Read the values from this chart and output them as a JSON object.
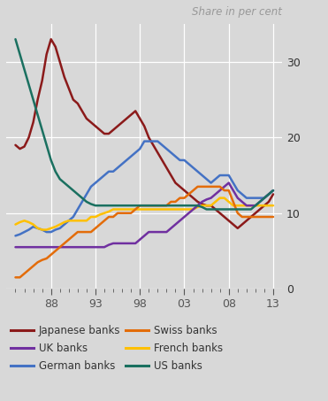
{
  "title": "Share in per cent",
  "background_color": "#d8d8d8",
  "xlim": [
    1983.0,
    2014.0
  ],
  "ylim": [
    0,
    35
  ],
  "yticks": [
    0,
    10,
    20,
    30
  ],
  "xticks": [
    1988,
    1993,
    1998,
    2003,
    2008,
    2013
  ],
  "xticklabels": [
    "88",
    "93",
    "98",
    "03",
    "08",
    "13"
  ],
  "series": {
    "Japanese banks": {
      "color": "#8b1a1a",
      "data": [
        [
          1984,
          19
        ],
        [
          1984.5,
          18.5
        ],
        [
          1985,
          18.8
        ],
        [
          1985.5,
          20
        ],
        [
          1986,
          22
        ],
        [
          1986.5,
          25
        ],
        [
          1987,
          27.5
        ],
        [
          1987.5,
          31
        ],
        [
          1988,
          33
        ],
        [
          1988.5,
          32
        ],
        [
          1989,
          30
        ],
        [
          1989.5,
          28
        ],
        [
          1990,
          26.5
        ],
        [
          1990.5,
          25
        ],
        [
          1991,
          24.5
        ],
        [
          1991.5,
          23.5
        ],
        [
          1992,
          22.5
        ],
        [
          1992.5,
          22
        ],
        [
          1993,
          21.5
        ],
        [
          1993.5,
          21
        ],
        [
          1994,
          20.5
        ],
        [
          1994.5,
          20.5
        ],
        [
          1995,
          21
        ],
        [
          1995.5,
          21.5
        ],
        [
          1996,
          22
        ],
        [
          1996.5,
          22.5
        ],
        [
          1997,
          23
        ],
        [
          1997.5,
          23.5
        ],
        [
          1998,
          22.5
        ],
        [
          1998.5,
          21.5
        ],
        [
          1999,
          20
        ],
        [
          1999.5,
          19
        ],
        [
          2000,
          18
        ],
        [
          2000.5,
          17
        ],
        [
          2001,
          16
        ],
        [
          2001.5,
          15
        ],
        [
          2002,
          14
        ],
        [
          2002.5,
          13.5
        ],
        [
          2003,
          13
        ],
        [
          2003.5,
          12.5
        ],
        [
          2004,
          12
        ],
        [
          2004.5,
          11.5
        ],
        [
          2005,
          11.2
        ],
        [
          2005.5,
          11
        ],
        [
          2006,
          11
        ],
        [
          2006.5,
          10.5
        ],
        [
          2007,
          10
        ],
        [
          2007.5,
          9.5
        ],
        [
          2008,
          9
        ],
        [
          2008.5,
          8.5
        ],
        [
          2009,
          8
        ],
        [
          2009.5,
          8.5
        ],
        [
          2010,
          9
        ],
        [
          2010.5,
          9.5
        ],
        [
          2011,
          10
        ],
        [
          2011.5,
          10.5
        ],
        [
          2012,
          11
        ],
        [
          2012.5,
          11.5
        ],
        [
          2013,
          12.5
        ]
      ]
    },
    "German banks": {
      "color": "#4472c4",
      "data": [
        [
          1984,
          7
        ],
        [
          1984.5,
          7.2
        ],
        [
          1985,
          7.5
        ],
        [
          1985.5,
          7.8
        ],
        [
          1986,
          8.2
        ],
        [
          1986.5,
          8
        ],
        [
          1987,
          7.8
        ],
        [
          1987.5,
          7.5
        ],
        [
          1988,
          7.5
        ],
        [
          1988.5,
          7.8
        ],
        [
          1989,
          8
        ],
        [
          1989.5,
          8.5
        ],
        [
          1990,
          9
        ],
        [
          1990.5,
          9.5
        ],
        [
          1991,
          10.5
        ],
        [
          1991.5,
          11.5
        ],
        [
          1992,
          12.5
        ],
        [
          1992.5,
          13.5
        ],
        [
          1993,
          14
        ],
        [
          1993.5,
          14.5
        ],
        [
          1994,
          15
        ],
        [
          1994.5,
          15.5
        ],
        [
          1995,
          15.5
        ],
        [
          1995.5,
          16
        ],
        [
          1996,
          16.5
        ],
        [
          1996.5,
          17
        ],
        [
          1997,
          17.5
        ],
        [
          1997.5,
          18
        ],
        [
          1998,
          18.5
        ],
        [
          1998.5,
          19.5
        ],
        [
          1999,
          19.5
        ],
        [
          1999.5,
          19.5
        ],
        [
          2000,
          19.5
        ],
        [
          2000.5,
          19
        ],
        [
          2001,
          18.5
        ],
        [
          2001.5,
          18
        ],
        [
          2002,
          17.5
        ],
        [
          2002.5,
          17
        ],
        [
          2003,
          17
        ],
        [
          2003.5,
          16.5
        ],
        [
          2004,
          16
        ],
        [
          2004.5,
          15.5
        ],
        [
          2005,
          15
        ],
        [
          2005.5,
          14.5
        ],
        [
          2006,
          14
        ],
        [
          2006.5,
          14.5
        ],
        [
          2007,
          15
        ],
        [
          2007.5,
          15
        ],
        [
          2008,
          15
        ],
        [
          2008.5,
          14
        ],
        [
          2009,
          13
        ],
        [
          2009.5,
          12.5
        ],
        [
          2010,
          12
        ],
        [
          2010.5,
          12
        ],
        [
          2011,
          12
        ],
        [
          2011.5,
          12
        ],
        [
          2012,
          12
        ],
        [
          2012.5,
          12.5
        ],
        [
          2013,
          13
        ]
      ]
    },
    "French banks": {
      "color": "#ffc000",
      "data": [
        [
          1984,
          8.5
        ],
        [
          1984.5,
          8.8
        ],
        [
          1985,
          9
        ],
        [
          1985.5,
          8.8
        ],
        [
          1986,
          8.5
        ],
        [
          1986.5,
          8
        ],
        [
          1987,
          7.8
        ],
        [
          1987.5,
          7.8
        ],
        [
          1988,
          8
        ],
        [
          1988.5,
          8.2
        ],
        [
          1989,
          8.5
        ],
        [
          1989.5,
          8.8
        ],
        [
          1990,
          9
        ],
        [
          1990.5,
          9
        ],
        [
          1991,
          9
        ],
        [
          1991.5,
          9
        ],
        [
          1992,
          9
        ],
        [
          1992.5,
          9.5
        ],
        [
          1993,
          9.5
        ],
        [
          1993.5,
          9.8
        ],
        [
          1994,
          10
        ],
        [
          1994.5,
          10.2
        ],
        [
          1995,
          10.5
        ],
        [
          1995.5,
          10.5
        ],
        [
          1996,
          10.5
        ],
        [
          1996.5,
          10.5
        ],
        [
          1997,
          10.5
        ],
        [
          1997.5,
          10.5
        ],
        [
          1998,
          10.5
        ],
        [
          1998.5,
          10.5
        ],
        [
          1999,
          10.5
        ],
        [
          1999.5,
          10.5
        ],
        [
          2000,
          10.5
        ],
        [
          2000.5,
          10.5
        ],
        [
          2001,
          10.5
        ],
        [
          2001.5,
          10.5
        ],
        [
          2002,
          10.5
        ],
        [
          2002.5,
          10.5
        ],
        [
          2003,
          10.5
        ],
        [
          2003.5,
          10.5
        ],
        [
          2004,
          10.5
        ],
        [
          2004.5,
          10.8
        ],
        [
          2005,
          11
        ],
        [
          2005.5,
          11
        ],
        [
          2006,
          11
        ],
        [
          2006.5,
          11.5
        ],
        [
          2007,
          12
        ],
        [
          2007.5,
          12
        ],
        [
          2008,
          11.5
        ],
        [
          2008.5,
          11
        ],
        [
          2009,
          11
        ],
        [
          2009.5,
          11
        ],
        [
          2010,
          11
        ],
        [
          2010.5,
          11
        ],
        [
          2011,
          11
        ],
        [
          2011.5,
          11
        ],
        [
          2012,
          11
        ],
        [
          2012.5,
          11
        ],
        [
          2013,
          11
        ]
      ]
    },
    "UK banks": {
      "color": "#7030a0",
      "data": [
        [
          1984,
          5.5
        ],
        [
          1984.5,
          5.5
        ],
        [
          1985,
          5.5
        ],
        [
          1985.5,
          5.5
        ],
        [
          1986,
          5.5
        ],
        [
          1986.5,
          5.5
        ],
        [
          1987,
          5.5
        ],
        [
          1987.5,
          5.5
        ],
        [
          1988,
          5.5
        ],
        [
          1988.5,
          5.5
        ],
        [
          1989,
          5.5
        ],
        [
          1989.5,
          5.5
        ],
        [
          1990,
          5.5
        ],
        [
          1990.5,
          5.5
        ],
        [
          1991,
          5.5
        ],
        [
          1991.5,
          5.5
        ],
        [
          1992,
          5.5
        ],
        [
          1992.5,
          5.5
        ],
        [
          1993,
          5.5
        ],
        [
          1993.5,
          5.5
        ],
        [
          1994,
          5.5
        ],
        [
          1994.5,
          5.8
        ],
        [
          1995,
          6
        ],
        [
          1995.5,
          6
        ],
        [
          1996,
          6
        ],
        [
          1996.5,
          6
        ],
        [
          1997,
          6
        ],
        [
          1997.5,
          6
        ],
        [
          1998,
          6.5
        ],
        [
          1998.5,
          7
        ],
        [
          1999,
          7.5
        ],
        [
          1999.5,
          7.5
        ],
        [
          2000,
          7.5
        ],
        [
          2000.5,
          7.5
        ],
        [
          2001,
          7.5
        ],
        [
          2001.5,
          8
        ],
        [
          2002,
          8.5
        ],
        [
          2002.5,
          9
        ],
        [
          2003,
          9.5
        ],
        [
          2003.5,
          10
        ],
        [
          2004,
          10.5
        ],
        [
          2004.5,
          11
        ],
        [
          2005,
          11.5
        ],
        [
          2005.5,
          11.8
        ],
        [
          2006,
          12
        ],
        [
          2006.5,
          12.5
        ],
        [
          2007,
          13
        ],
        [
          2007.5,
          13.5
        ],
        [
          2008,
          14
        ],
        [
          2008.5,
          13
        ],
        [
          2009,
          12
        ],
        [
          2009.5,
          11.5
        ],
        [
          2010,
          11
        ],
        [
          2010.5,
          11
        ],
        [
          2011,
          11
        ],
        [
          2011.5,
          11.5
        ],
        [
          2012,
          12
        ],
        [
          2012.5,
          12.5
        ],
        [
          2013,
          13
        ]
      ]
    },
    "Swiss banks": {
      "color": "#e36c09",
      "data": [
        [
          1984,
          1.5
        ],
        [
          1984.5,
          1.5
        ],
        [
          1985,
          2
        ],
        [
          1985.5,
          2.5
        ],
        [
          1986,
          3
        ],
        [
          1986.5,
          3.5
        ],
        [
          1987,
          3.8
        ],
        [
          1987.5,
          4
        ],
        [
          1988,
          4.5
        ],
        [
          1988.5,
          5
        ],
        [
          1989,
          5.5
        ],
        [
          1989.5,
          6
        ],
        [
          1990,
          6.5
        ],
        [
          1990.5,
          7
        ],
        [
          1991,
          7.5
        ],
        [
          1991.5,
          7.5
        ],
        [
          1992,
          7.5
        ],
        [
          1992.5,
          7.5
        ],
        [
          1993,
          8
        ],
        [
          1993.5,
          8.5
        ],
        [
          1994,
          9
        ],
        [
          1994.5,
          9.5
        ],
        [
          1995,
          9.5
        ],
        [
          1995.5,
          10
        ],
        [
          1996,
          10
        ],
        [
          1996.5,
          10
        ],
        [
          1997,
          10
        ],
        [
          1997.5,
          10.5
        ],
        [
          1998,
          11
        ],
        [
          1998.5,
          11
        ],
        [
          1999,
          11
        ],
        [
          1999.5,
          11
        ],
        [
          2000,
          11
        ],
        [
          2000.5,
          11
        ],
        [
          2001,
          11
        ],
        [
          2001.5,
          11.5
        ],
        [
          2002,
          11.5
        ],
        [
          2002.5,
          12
        ],
        [
          2003,
          12
        ],
        [
          2003.5,
          12.5
        ],
        [
          2004,
          13
        ],
        [
          2004.5,
          13.5
        ],
        [
          2005,
          13.5
        ],
        [
          2005.5,
          13.5
        ],
        [
          2006,
          13.5
        ],
        [
          2006.5,
          13.5
        ],
        [
          2007,
          13.5
        ],
        [
          2007.5,
          13
        ],
        [
          2008,
          13
        ],
        [
          2008.5,
          11.5
        ],
        [
          2009,
          10
        ],
        [
          2009.5,
          9.5
        ],
        [
          2010,
          9.5
        ],
        [
          2010.5,
          9.5
        ],
        [
          2011,
          9.5
        ],
        [
          2011.5,
          9.5
        ],
        [
          2012,
          9.5
        ],
        [
          2012.5,
          9.5
        ],
        [
          2013,
          9.5
        ]
      ]
    },
    "US banks": {
      "color": "#1a7060",
      "data": [
        [
          1984,
          33
        ],
        [
          1984.5,
          31
        ],
        [
          1985,
          29
        ],
        [
          1985.5,
          27
        ],
        [
          1986,
          25
        ],
        [
          1986.5,
          23
        ],
        [
          1987,
          21
        ],
        [
          1987.5,
          19
        ],
        [
          1988,
          17
        ],
        [
          1988.5,
          15.5
        ],
        [
          1989,
          14.5
        ],
        [
          1989.5,
          14
        ],
        [
          1990,
          13.5
        ],
        [
          1990.5,
          13
        ],
        [
          1991,
          12.5
        ],
        [
          1991.5,
          12
        ],
        [
          1992,
          11.5
        ],
        [
          1992.5,
          11.2
        ],
        [
          1993,
          11
        ],
        [
          1993.5,
          11
        ],
        [
          1994,
          11
        ],
        [
          1994.5,
          11
        ],
        [
          1995,
          11
        ],
        [
          1995.5,
          11
        ],
        [
          1996,
          11
        ],
        [
          1996.5,
          11
        ],
        [
          1997,
          11
        ],
        [
          1997.5,
          11
        ],
        [
          1998,
          11
        ],
        [
          1998.5,
          11
        ],
        [
          1999,
          11
        ],
        [
          1999.5,
          11
        ],
        [
          2000,
          11
        ],
        [
          2000.5,
          11
        ],
        [
          2001,
          11
        ],
        [
          2001.5,
          11
        ],
        [
          2002,
          11
        ],
        [
          2002.5,
          11
        ],
        [
          2003,
          11
        ],
        [
          2003.5,
          11
        ],
        [
          2004,
          11
        ],
        [
          2004.5,
          11
        ],
        [
          2005,
          10.8
        ],
        [
          2005.5,
          10.5
        ],
        [
          2006,
          10.5
        ],
        [
          2006.5,
          10.5
        ],
        [
          2007,
          10.5
        ],
        [
          2007.5,
          10.5
        ],
        [
          2008,
          10.5
        ],
        [
          2008.5,
          10.5
        ],
        [
          2009,
          10.5
        ],
        [
          2009.5,
          10.5
        ],
        [
          2010,
          10.5
        ],
        [
          2010.5,
          10.5
        ],
        [
          2011,
          11
        ],
        [
          2011.5,
          11.5
        ],
        [
          2012,
          12
        ],
        [
          2012.5,
          12.5
        ],
        [
          2013,
          13
        ]
      ]
    }
  },
  "legend_order": [
    "Japanese banks",
    "UK banks",
    "German banks",
    "Swiss banks",
    "French banks",
    "US banks"
  ]
}
